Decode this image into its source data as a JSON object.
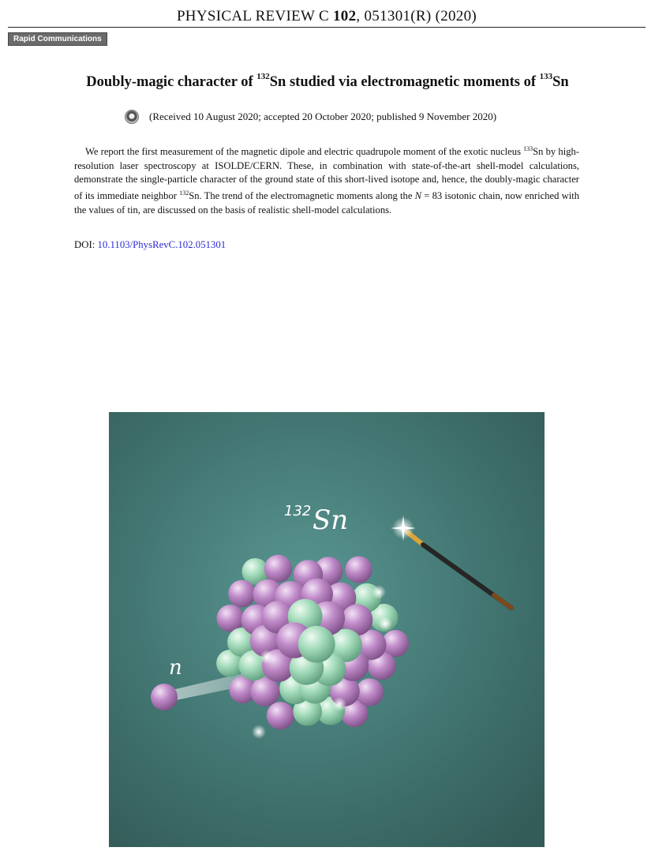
{
  "header": {
    "journal": "PHYSICAL REVIEW C",
    "volume": "102",
    "citation": ", 051301(R) (2020)"
  },
  "section_badge": "Rapid Communications",
  "title": {
    "part1": "Doubly-magic character of ",
    "sup1": "132",
    "part2": "Sn studied via electromagnetic moments of ",
    "sup2": "133",
    "part3": "Sn"
  },
  "received": "(Received 10 August 2020; accepted 20 October 2020; published 9 November 2020)",
  "abstract": {
    "t1": "We report the first measurement of the magnetic dipole and electric quadrupole moment of the exotic nucleus ",
    "sup1": "133",
    "t2": "Sn by high-resolution laser spectroscopy at ISOLDE/CERN. These, in combination with state-of-the-art shell-model calculations, demonstrate the single-particle character of the ground state of this short-lived isotope and, hence, the doubly-magic character of its immediate neighbor ",
    "sup2": "132",
    "t3": "Sn. The trend of the electromagnetic moments along the ",
    "N": "N",
    "t4": " = 83 isotonic chain, now enriched with the values of tin, are discussed on the basis of realistic shell-model calculations."
  },
  "doi": {
    "label": "DOI: ",
    "value": "10.1103/PhysRevC.102.051301"
  },
  "figure": {
    "mass_label": "132",
    "element_label": "Sn",
    "neutron_label": "n",
    "colors": {
      "background": "#3f6e6a",
      "glow": "#4f8a86",
      "proton": "#b77fc0",
      "neutron": "#9fd7b7",
      "wand": "#2a2a2a",
      "wand_tip": "#c99a2e"
    }
  }
}
